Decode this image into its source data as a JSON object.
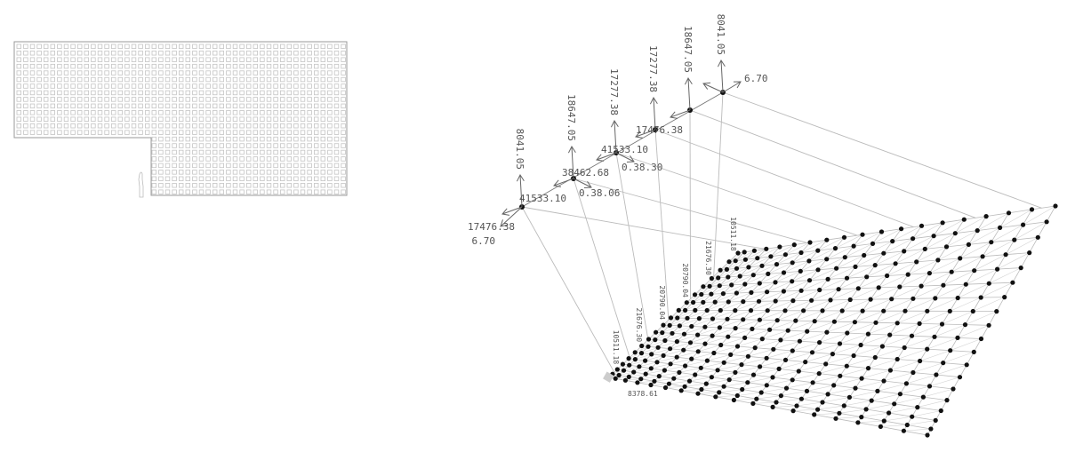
{
  "colors": {
    "line": "#bbbbbb",
    "node": "#111111",
    "arrow": "#666666",
    "text": "#555555"
  },
  "plan": {
    "icons": [
      "human-figure-icon"
    ]
  },
  "supports": [
    {
      "labels": [
        "8041.05",
        "17476.38",
        "6.70"
      ]
    },
    {
      "labels": [
        "18647.05",
        "41533.10",
        "0.38.06"
      ]
    },
    {
      "labels": [
        "17277.38",
        "38462.68",
        "0.38.30"
      ]
    },
    {
      "labels": [
        "17277.38",
        "41533.10",
        ""
      ]
    },
    {
      "labels": [
        "18647.05",
        "17476.38",
        ""
      ]
    },
    {
      "labels": [
        "8041.05",
        "",
        "6.70"
      ]
    }
  ],
  "grid_labels": [
    "10511.18",
    "21676.30",
    "20790.04",
    "20790.04",
    "21676.30",
    "10511.18",
    "8378.61"
  ]
}
